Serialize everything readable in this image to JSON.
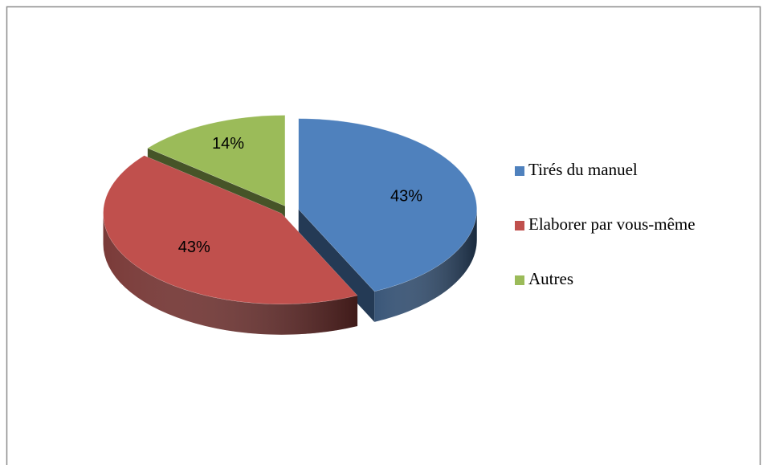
{
  "chart_data": {
    "type": "pie",
    "categories": [
      "Tirés du manuel",
      "Elaborer par vous-même",
      "Autres"
    ],
    "values": [
      43,
      43,
      14
    ],
    "value_labels": [
      "43%",
      "43%",
      "14%"
    ],
    "colors": [
      "#4f81bd",
      "#c0504d",
      "#9bbb59"
    ],
    "legend": "right"
  }
}
